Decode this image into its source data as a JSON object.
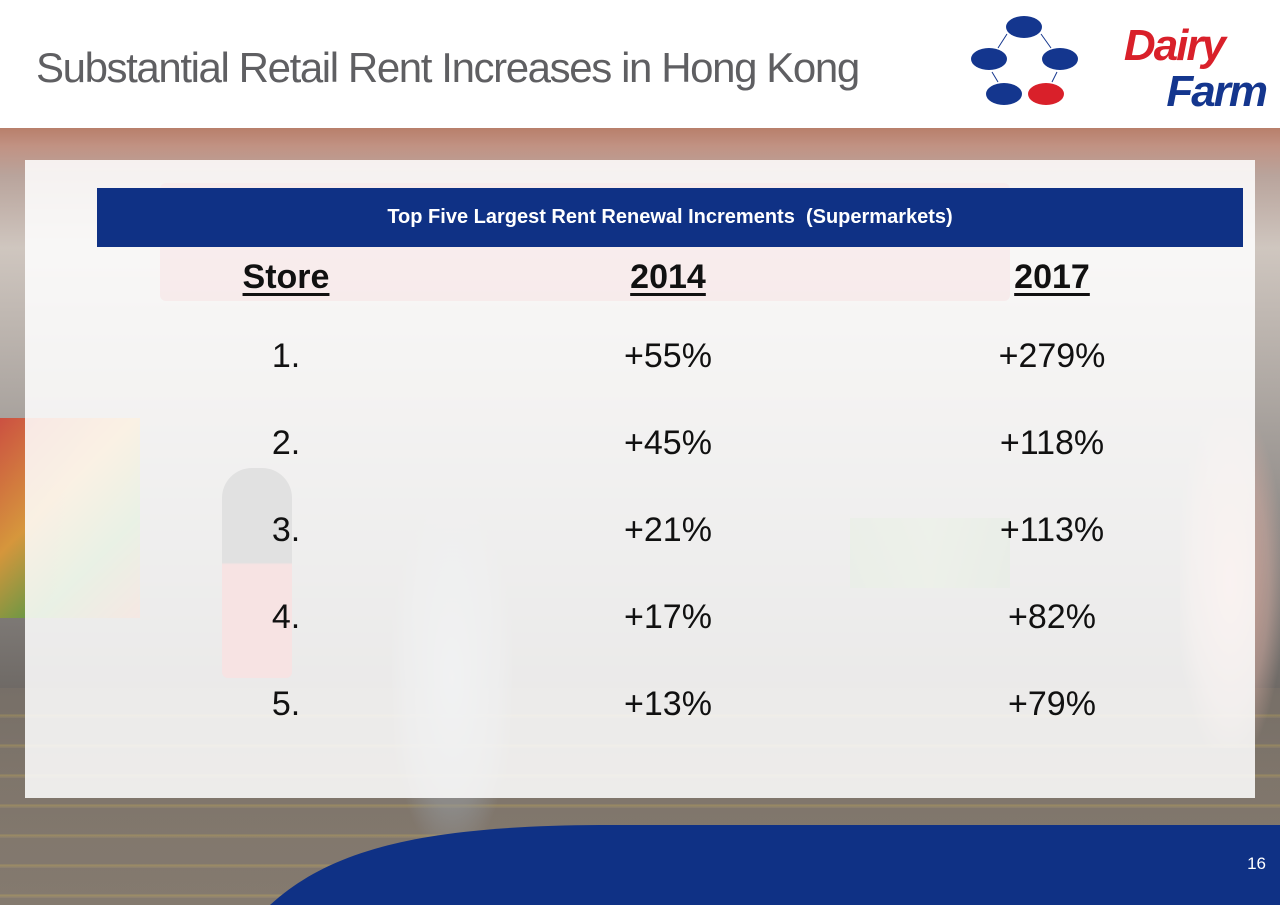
{
  "slide": {
    "title": "Substantial Retail Rent Increases in Hong Kong",
    "page_number": "16"
  },
  "logo": {
    "line1": "Dairy",
    "line2": "Farm",
    "colors": {
      "red": "#d9202a",
      "blue": "#14368e"
    }
  },
  "chart_data": {
    "type": "table",
    "title": "Top Five Largest Rent Renewal Increments  (Supermarkets)",
    "columns": [
      "Store",
      "2014",
      "2017"
    ],
    "rows": [
      [
        "1.",
        "+55%",
        "+279%"
      ],
      [
        "2.",
        "+45%",
        "+118%"
      ],
      [
        "3.",
        "+21%",
        "+113%"
      ],
      [
        "4.",
        "+17%",
        "+82%"
      ],
      [
        "5.",
        "+13%",
        "+79%"
      ]
    ],
    "header_color": "#0f3185"
  }
}
